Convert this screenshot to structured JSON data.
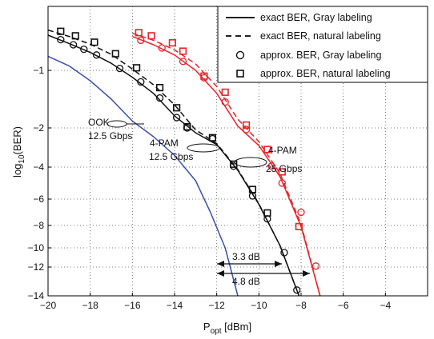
{
  "chart_data": {
    "type": "line",
    "xlabel": {
      "main": "P",
      "sub": "opt",
      "unit": " [dBm]"
    },
    "ylabel": {
      "main": "log",
      "sub": "10",
      "rest": "(BER)"
    },
    "xlim": [
      -20,
      -2
    ],
    "xticks": [
      -20,
      -18,
      -16,
      -14,
      -12,
      -10,
      -8,
      -6,
      -4
    ],
    "yticks": [
      {
        "value": -1,
        "label": "−1"
      },
      {
        "value": -2,
        "label": "−2"
      },
      {
        "value": -4,
        "label": "−4"
      },
      {
        "value": -6,
        "label": "−6"
      },
      {
        "value": -8,
        "label": "−8"
      },
      {
        "value": -10,
        "label": "−10"
      },
      {
        "value": -12,
        "label": "−12"
      },
      {
        "value": -14,
        "label": "−14"
      }
    ],
    "y_scale": "compressed (log-log style)",
    "grid": true,
    "legend": {
      "placement": "top-right",
      "entries": [
        {
          "label": "exact BER, Gray labeling",
          "style": "solid-line"
        },
        {
          "label": "exact BER, natural labeling",
          "style": "dashed-line"
        },
        {
          "label": "approx. BER, Gray labeling",
          "style": "circle-marker"
        },
        {
          "label": "approx. BER, natural labeling",
          "style": "square-marker"
        }
      ]
    },
    "series": [
      {
        "color": "#3a4fb0",
        "dash": false,
        "marker": null,
        "points": [
          [
            -20,
            -0.78
          ],
          [
            -19,
            -0.93
          ],
          [
            -18,
            -1.18
          ],
          [
            -17,
            -1.5
          ],
          [
            -16,
            -1.88
          ],
          [
            -15,
            -2.45
          ],
          [
            -14,
            -3.4
          ],
          [
            -13,
            -4.85
          ],
          [
            -12.3,
            -7.0
          ],
          [
            -11.6,
            -10.0
          ],
          [
            -11.0,
            -14.0
          ]
        ]
      },
      {
        "color": "#111111",
        "dash": false,
        "marker": "circle",
        "points": [
          [
            -20,
            -0.45
          ],
          [
            -19,
            -0.58
          ],
          [
            -18,
            -0.72
          ],
          [
            -17,
            -0.89
          ],
          [
            -16,
            -1.12
          ],
          [
            -15,
            -1.4
          ],
          [
            -14,
            -1.79
          ],
          [
            -13,
            -2.25
          ],
          [
            -12,
            -2.85
          ],
          [
            -11,
            -4.2
          ],
          [
            -10,
            -6.4
          ],
          [
            -9,
            -9.8
          ],
          [
            -8.1,
            -14.0
          ]
        ],
        "markers": [
          [
            -19.4,
            -0.52
          ],
          [
            -18.8,
            -0.6
          ],
          [
            -18.3,
            -0.67
          ],
          [
            -17.7,
            -0.76
          ],
          [
            -16.6,
            -0.97
          ],
          [
            -15.6,
            -1.2
          ],
          [
            -14.7,
            -1.48
          ],
          [
            -13.9,
            -1.82
          ],
          [
            -13.4,
            -2.0
          ],
          [
            -12.2,
            -2.55
          ],
          [
            -11.2,
            -3.95
          ],
          [
            -10.3,
            -5.8
          ],
          [
            -9.6,
            -7.5
          ],
          [
            -8.8,
            -10.5
          ],
          [
            -8.2,
            -13.6
          ]
        ]
      },
      {
        "color": "#111111",
        "dash": true,
        "marker": "square",
        "points": [
          [
            -20,
            -0.37
          ],
          [
            -19,
            -0.47
          ],
          [
            -18,
            -0.59
          ],
          [
            -17,
            -0.75
          ],
          [
            -16,
            -0.98
          ],
          [
            -15,
            -1.25
          ],
          [
            -14,
            -1.6
          ],
          [
            -13,
            -2.1
          ],
          [
            -12,
            -2.8
          ],
          [
            -11,
            -4.15
          ],
          [
            -10,
            -6.35
          ],
          [
            -9,
            -9.8
          ],
          [
            -8.1,
            -14.0
          ]
        ],
        "markers": [
          [
            -19.4,
            -0.39
          ],
          [
            -18.7,
            -0.46
          ],
          [
            -17.8,
            -0.56
          ],
          [
            -16.8,
            -0.74
          ],
          [
            -15.8,
            -0.96
          ],
          [
            -14.7,
            -1.3
          ],
          [
            -13.9,
            -1.65
          ],
          [
            -13.4,
            -1.98
          ],
          [
            -12.2,
            -2.5
          ],
          [
            -11.2,
            -3.85
          ],
          [
            -10.3,
            -5.4
          ],
          [
            -9.6,
            -7.05
          ]
        ]
      },
      {
        "color": "#e8232a",
        "dash": false,
        "marker": "circle",
        "points": [
          [
            -16,
            -0.47
          ],
          [
            -15,
            -0.6
          ],
          [
            -14,
            -0.76
          ],
          [
            -13,
            -1.0
          ],
          [
            -12,
            -1.4
          ],
          [
            -11,
            -1.97
          ],
          [
            -10,
            -2.9
          ],
          [
            -9,
            -4.6
          ],
          [
            -8,
            -8.1
          ],
          [
            -7.1,
            -14.0
          ]
        ],
        "markers": [
          [
            -15.6,
            -0.53
          ],
          [
            -14.6,
            -0.65
          ],
          [
            -13.6,
            -0.86
          ],
          [
            -12.6,
            -1.13
          ],
          [
            -11.6,
            -1.55
          ],
          [
            -10.6,
            -2.08
          ],
          [
            -9.4,
            -3.95
          ],
          [
            -8.9,
            -5.0
          ],
          [
            -8.0,
            -7.0
          ],
          [
            -7.3,
            -11.9
          ]
        ]
      },
      {
        "color": "#e8232a",
        "dash": true,
        "marker": "square",
        "points": [
          [
            -16,
            -0.42
          ],
          [
            -15,
            -0.53
          ],
          [
            -14,
            -0.68
          ],
          [
            -13,
            -0.9
          ],
          [
            -12,
            -1.28
          ],
          [
            -11,
            -1.85
          ],
          [
            -10,
            -2.7
          ],
          [
            -9,
            -4.4
          ],
          [
            -8,
            -7.9
          ],
          [
            -7.1,
            -14.0
          ]
        ],
        "markers": [
          [
            -15.7,
            -0.41
          ],
          [
            -15.1,
            -0.46
          ],
          [
            -14.1,
            -0.57
          ],
          [
            -13.6,
            -0.7
          ],
          [
            -12.6,
            -1.1
          ],
          [
            -11.6,
            -1.38
          ],
          [
            -10.6,
            -1.95
          ],
          [
            -9.6,
            -3.1
          ],
          [
            -8.9,
            -4.3
          ],
          [
            -8.1,
            -8.1
          ]
        ]
      }
    ],
    "annotations": [
      {
        "lines": [
          "OOK",
          "12.5 Gbps"
        ]
      },
      {
        "lines": [
          "4-PAM",
          "12.5 Gbps"
        ]
      },
      {
        "lines": [
          "4-PAM",
          "25 Gbps"
        ]
      },
      {
        "text": "3.3 dB",
        "x_from": -12.0,
        "x_to": -9.0,
        "y": -9.0
      },
      {
        "text": "4.8 dB",
        "x_from": -12.0,
        "x_to": -8.0,
        "y": -10.0
      }
    ]
  }
}
